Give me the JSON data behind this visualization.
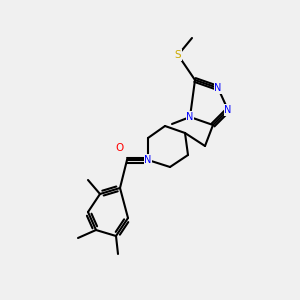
{
  "bg_color": "#f0f0f0",
  "atom_colors": {
    "C": "#000000",
    "N": "#0000ff",
    "O": "#ff0000",
    "S": "#ccaa00"
  },
  "bond_color": "#000000",
  "lw": 1.5,
  "figsize": [
    3.0,
    3.0
  ],
  "dpi": 100
}
